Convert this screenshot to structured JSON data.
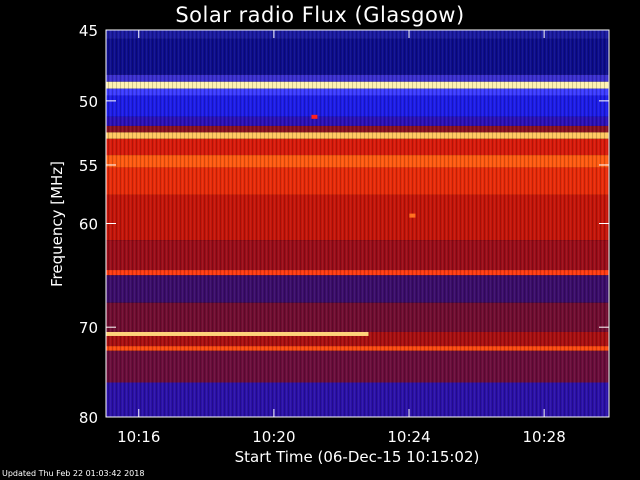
{
  "chart_data": {
    "type": "heatmap",
    "title": "Solar radio Flux (Glasgow)",
    "xlabel": "Start Time (06-Dec-15 10:15:02)",
    "ylabel": "Frequency [MHz]",
    "x_ticks": [
      "10:16",
      "10:20",
      "10:24",
      "10:28"
    ],
    "x_tick_minutes": [
      16,
      20,
      24,
      28
    ],
    "x_range_minutes": [
      15.03,
      29.92
    ],
    "y_ticks": [
      45,
      50,
      55,
      60,
      70,
      80
    ],
    "y_range": [
      45,
      80
    ],
    "y_scale": "log",
    "bands": [
      {
        "from": 45.0,
        "to": 45.6,
        "color": "#1a1aa0"
      },
      {
        "from": 45.6,
        "to": 48.1,
        "color": "#0c0c8c"
      },
      {
        "from": 48.1,
        "to": 48.6,
        "color": "#3a2fd0"
      },
      {
        "from": 48.6,
        "to": 49.1,
        "color": "#fff2b0"
      },
      {
        "from": 49.1,
        "to": 49.6,
        "color": "#3b3bff"
      },
      {
        "from": 49.6,
        "to": 51.2,
        "color": "#1c1ce8"
      },
      {
        "from": 51.2,
        "to": 51.9,
        "color": "#2a10b8"
      },
      {
        "from": 51.9,
        "to": 52.4,
        "color": "#8a1020"
      },
      {
        "from": 52.4,
        "to": 52.9,
        "color": "#ffc860"
      },
      {
        "from": 52.9,
        "to": 54.2,
        "color": "#d81a0a"
      },
      {
        "from": 54.2,
        "to": 55.2,
        "color": "#ff5a10"
      },
      {
        "from": 55.2,
        "to": 57.5,
        "color": "#e82a08"
      },
      {
        "from": 57.5,
        "to": 61.5,
        "color": "#c41408"
      },
      {
        "from": 61.5,
        "to": 64.3,
        "color": "#9a0c18"
      },
      {
        "from": 64.3,
        "to": 64.8,
        "color": "#ff3a10"
      },
      {
        "from": 64.8,
        "to": 67.5,
        "color": "#3a0c6a"
      },
      {
        "from": 67.5,
        "to": 70.5,
        "color": "#700c30"
      },
      {
        "from": 70.5,
        "to": 72.0,
        "color": "#a80e10"
      },
      {
        "from": 72.0,
        "to": 72.5,
        "color": "#ff4a10"
      },
      {
        "from": 72.5,
        "to": 76.0,
        "color": "#6a0c3a"
      },
      {
        "from": 76.0,
        "to": 80.0,
        "color": "#2a10a8"
      }
    ],
    "features": [
      {
        "type": "line",
        "freq": 70.5,
        "from_min": 15.03,
        "to_min": 22.8,
        "color": "#ffd27a"
      },
      {
        "type": "spot",
        "freq": 59.3,
        "minute": 24.1,
        "color": "#ff7020"
      },
      {
        "type": "spot",
        "freq": 51.2,
        "minute": 21.2,
        "color": "#ff2020"
      }
    ]
  },
  "footer": "Updated Thu Feb 22 01:03:42 2018"
}
